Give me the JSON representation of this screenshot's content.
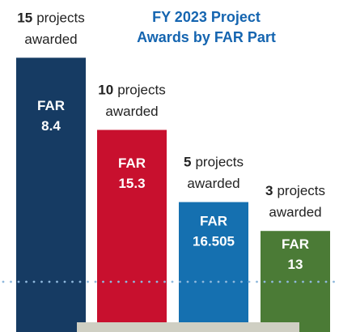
{
  "chart_data": {
    "type": "bar",
    "title": [
      "FY 2023 Project",
      "Awards by FAR Part"
    ],
    "categories": [
      "FAR 8.4",
      "FAR 15.3",
      "FAR 16.505",
      "FAR 13"
    ],
    "values": [
      15,
      10,
      5,
      3
    ],
    "value_unit": [
      "projects",
      "awarded"
    ],
    "colors": [
      "#163b63",
      "#c8102e",
      "#1570b0",
      "#4b7b36"
    ],
    "ylim": [
      -4,
      19
    ]
  }
}
